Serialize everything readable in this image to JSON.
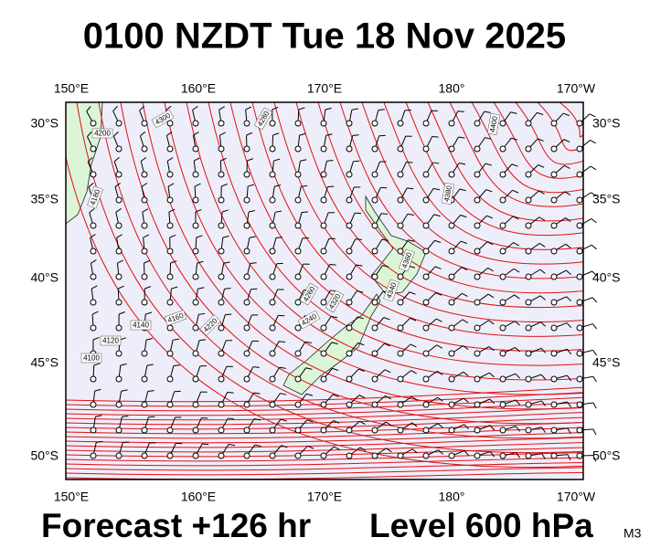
{
  "title": "0100 NZDT Tue 18 Nov 2025",
  "lon_labels": [
    "150°E",
    "160°E",
    "170°E",
    "180°",
    "170°W"
  ],
  "lat_labels": [
    "30°S",
    "35°S",
    "40°S",
    "45°S",
    "50°S"
  ],
  "contour_labels": [
    4200,
    4300,
    4180,
    4160,
    4140,
    4120,
    4100,
    4220,
    4240,
    4260,
    4280,
    4320,
    4340,
    4360,
    4380,
    4400
  ],
  "footer": {
    "forecast": "Forecast +126 hr",
    "level": "Level 600 hPa",
    "model": "M3"
  }
}
